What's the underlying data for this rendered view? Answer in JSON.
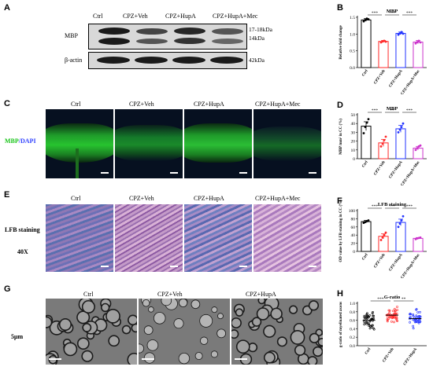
{
  "panels": {
    "A": {
      "letter": "A",
      "groups": [
        "Ctrl",
        "CPZ+Veh",
        "CPZ+HupA",
        "CPZ+HupA+Mec"
      ],
      "rows": [
        {
          "label": "MBP",
          "sizes": [
            "17-18kDa",
            "14kDa"
          ]
        },
        {
          "label": "β-actin",
          "sizes": [
            "42kDa"
          ]
        }
      ]
    },
    "C": {
      "letter": "C",
      "groups": [
        "Ctrl",
        "CPZ+Veh",
        "CPZ+HupA",
        "CPZ+HupA+Mec"
      ],
      "side_label_a": "MBP",
      "side_label_b": "/DAPI"
    },
    "E": {
      "letter": "E",
      "groups": [
        "Ctrl",
        "CPZ+Veh",
        "CPZ+HupA",
        "CPZ+HupA+Mec"
      ],
      "side_label_1": "LFB staining",
      "side_label_2": "40X"
    },
    "G": {
      "letter": "G",
      "groups": [
        "Ctrl",
        "CPZ+Veh",
        "CPZ+HupA"
      ],
      "side_label": "5μm"
    }
  },
  "chart_data": [
    {
      "letter": "B",
      "type": "bar",
      "title": "MBP",
      "ylabel": "Relative fold change",
      "categories": [
        "Ctrl",
        "CPZ+Veh",
        "CPZ+HupA",
        "CPZ+HupA+Mec"
      ],
      "values": [
        1.42,
        0.78,
        1.02,
        0.76
      ],
      "errors": [
        0.04,
        0.03,
        0.04,
        0.05
      ],
      "ylim": [
        0,
        1.5
      ],
      "yticks": [
        "0.0",
        "0.5",
        "1.0",
        "1.5"
      ],
      "ytick_values": [
        0,
        0.5,
        1.0,
        1.5
      ],
      "colors": [
        "#000000",
        "#ff2a2a",
        "#2233ff",
        "#cc33cc"
      ],
      "points": [
        [
          1.38,
          1.42,
          1.46,
          1.44
        ],
        [
          0.75,
          0.78,
          0.8,
          0.77
        ],
        [
          0.98,
          1.02,
          1.06,
          1.01
        ],
        [
          0.72,
          0.76,
          0.8,
          0.75
        ]
      ],
      "significance": [
        {
          "from": 0,
          "to": 1,
          "label": "***"
        },
        {
          "from": 1,
          "to": 2,
          "label": "***"
        },
        {
          "from": 2,
          "to": 3,
          "label": "***"
        }
      ]
    },
    {
      "letter": "D",
      "type": "bar",
      "title": "MBP",
      "ylabel": "MBP/mm² in CC (%)",
      "categories": [
        "Ctrl",
        "CPZ+Veh",
        "CPZ+HupA",
        "CPZ+HupA+Mec"
      ],
      "values": [
        37,
        18,
        34,
        12
      ],
      "errors": [
        5,
        4,
        4,
        2
      ],
      "ylim": [
        0,
        50
      ],
      "yticks": [
        "0",
        "10",
        "20",
        "30",
        "40",
        "50"
      ],
      "ytick_values": [
        0,
        10,
        20,
        30,
        40,
        50
      ],
      "colors": [
        "#000000",
        "#ff2a2a",
        "#2233ff",
        "#cc33cc"
      ],
      "points": [
        [
          29,
          36,
          41,
          45
        ],
        [
          14,
          17,
          21,
          25
        ],
        [
          30,
          33,
          36,
          40
        ],
        [
          10,
          12,
          14,
          15
        ]
      ],
      "significance": [
        {
          "from": 0,
          "to": 1,
          "label": "***"
        },
        {
          "from": 1,
          "to": 2,
          "label": "**"
        },
        {
          "from": 2,
          "to": 3,
          "label": "***"
        }
      ]
    },
    {
      "letter": "F",
      "type": "bar",
      "title": "LFB staining",
      "ylabel": "OD value by LFB staining in CC (%)",
      "categories": [
        "Ctrl",
        "CPZ+Veh",
        "CPZ+HupA",
        "CPZ+HupA+Mec"
      ],
      "values": [
        73,
        37,
        71,
        32
      ],
      "errors": [
        3,
        6,
        8,
        2
      ],
      "ylim": [
        0,
        100
      ],
      "yticks": [
        "0",
        "20",
        "40",
        "60",
        "80",
        "100"
      ],
      "ytick_values": [
        0,
        20,
        40,
        60,
        80,
        100
      ],
      "colors": [
        "#000000",
        "#ff2a2a",
        "#2233ff",
        "#cc33cc"
      ],
      "points": [
        [
          70,
          72,
          74,
          76
        ],
        [
          28,
          34,
          40,
          46
        ],
        [
          60,
          68,
          76,
          86
        ],
        [
          30,
          32,
          33,
          34
        ]
      ],
      "significance": [
        {
          "from": 0,
          "to": 1,
          "label": "***"
        },
        {
          "from": 1,
          "to": 2,
          "label": "***"
        },
        {
          "from": 2,
          "to": 3,
          "label": "***"
        }
      ]
    },
    {
      "letter": "H",
      "type": "scatter",
      "title": "G-ratio",
      "ylabel": "g-ratio of myelinated axons",
      "categories": [
        "Ctrl",
        "CPZ+Veh",
        "CPZ+HupA"
      ],
      "values": [
        0.6,
        0.72,
        0.64
      ],
      "ylim": [
        0,
        1.0
      ],
      "yticks": [
        "0.0",
        "0.2",
        "0.4",
        "0.6",
        "0.8",
        "1.0"
      ],
      "ytick_values": [
        0,
        0.2,
        0.4,
        0.6,
        0.8,
        1.0
      ],
      "colors": [
        "#000000",
        "#ff2a2a",
        "#2233ff"
      ],
      "spread": [
        [
          0.35,
          0.85
        ],
        [
          0.52,
          0.92
        ],
        [
          0.4,
          0.9
        ]
      ],
      "significance": [
        {
          "from": 0,
          "to": 1,
          "label": "***"
        },
        {
          "from": 1,
          "to": 2,
          "label": "**"
        }
      ]
    }
  ]
}
